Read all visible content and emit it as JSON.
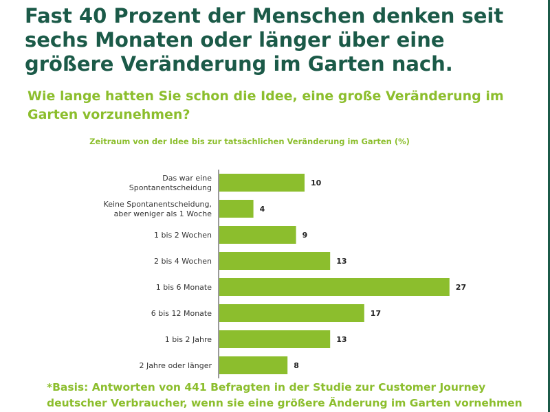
{
  "headline": "Fast 40 Prozent der Menschen denken seit sechs Monaten oder länger über eine größere Veränderung im Garten nach.",
  "question": "Wie lange hatten Sie schon die Idee, eine große Veränderung im Garten vorzunehmen?",
  "footnote": "*Basis: Antworten von 441 Befragten in der Studie zur Customer Journey deutscher Verbraucher, wenn sie eine größere Änderung im Garten vornehmen",
  "colors": {
    "headline": "#1b5a48",
    "accent_green": "#8cbe2d"
  },
  "chart_data": {
    "type": "bar",
    "orientation": "horizontal",
    "title": "Zeitraum von der Idee bis zur tatsächlichen Veränderung im Garten (%)",
    "categories": [
      [
        "Das war eine",
        "Spontanentscheidung"
      ],
      [
        "Keine Spontanentscheidung,",
        "aber weniger als 1 Woche"
      ],
      [
        "1 bis 2 Wochen"
      ],
      [
        "2 bis 4 Wochen"
      ],
      [
        "1 bis 6 Monate"
      ],
      [
        "6 bis 12 Monate"
      ],
      [
        "1 bis 2 Jahre"
      ],
      [
        "2 Jahre oder länger"
      ]
    ],
    "values": [
      10,
      4,
      9,
      13,
      27,
      17,
      13,
      8
    ],
    "xlim": [
      0,
      30
    ],
    "grid": false,
    "legend": "none"
  }
}
